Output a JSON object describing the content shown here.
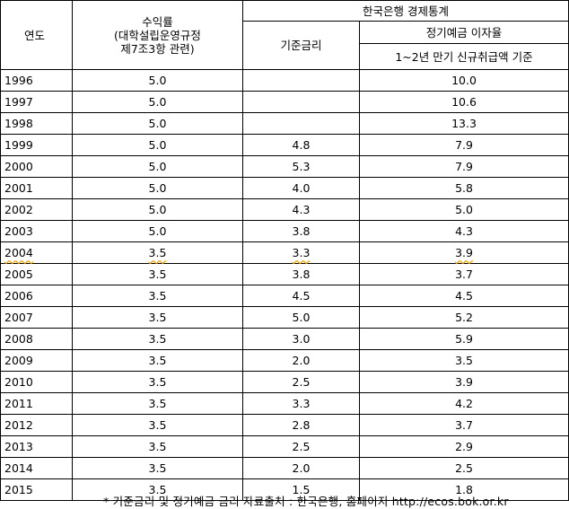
{
  "header": {
    "year": "연도",
    "rate_line1": "수익률",
    "rate_line2": "(대학설립운영규정",
    "rate_line3": "제7조3항 관련)",
    "bok": "한국은행 경제통계",
    "base_rate": "기준금리",
    "deposit": "정기예금 이자율",
    "deposit_sub": "1~2년 만기 신규취급액 기준"
  },
  "rows": [
    {
      "year": "1996",
      "rate": "5.0",
      "base": "",
      "deposit": "10.0"
    },
    {
      "year": "1997",
      "rate": "5.0",
      "base": "",
      "deposit": "10.6"
    },
    {
      "year": "1998",
      "rate": "5.0",
      "base": "",
      "deposit": "13.3"
    },
    {
      "year": "1999",
      "rate": "5.0",
      "base": "4.8",
      "deposit": "7.9"
    },
    {
      "year": "2000",
      "rate": "5.0",
      "base": "5.3",
      "deposit": "7.9"
    },
    {
      "year": "2001",
      "rate": "5.0",
      "base": "4.0",
      "deposit": "5.8"
    },
    {
      "year": "2002",
      "rate": "5.0",
      "base": "4.3",
      "deposit": "5.0"
    },
    {
      "year": "2003",
      "rate": "5.0",
      "base": "3.8",
      "deposit": "4.3"
    },
    {
      "year": "2004",
      "rate": "3.5",
      "base": "3.3",
      "deposit": "3.9",
      "marked": true
    },
    {
      "year": "2005",
      "rate": "3.5",
      "base": "3.8",
      "deposit": "3.7"
    },
    {
      "year": "2006",
      "rate": "3.5",
      "base": "4.5",
      "deposit": "4.5"
    },
    {
      "year": "2007",
      "rate": "3.5",
      "base": "5.0",
      "deposit": "5.2"
    },
    {
      "year": "2008",
      "rate": "3.5",
      "base": "3.0",
      "deposit": "5.9"
    },
    {
      "year": "2009",
      "rate": "3.5",
      "base": "2.0",
      "deposit": "3.5"
    },
    {
      "year": "2010",
      "rate": "3.5",
      "base": "2.5",
      "deposit": "3.9"
    },
    {
      "year": "2011",
      "rate": "3.5",
      "base": "3.3",
      "deposit": "4.2"
    },
    {
      "year": "2012",
      "rate": "3.5",
      "base": "2.8",
      "deposit": "3.7"
    },
    {
      "year": "2013",
      "rate": "3.5",
      "base": "2.5",
      "deposit": "2.9"
    },
    {
      "year": "2014",
      "rate": "3.5",
      "base": "2.0",
      "deposit": "2.5"
    },
    {
      "year": "2015",
      "rate": "3.5",
      "base": "1.5",
      "deposit": "1.8"
    }
  ],
  "footnote": "* 기준금리 및 정기예금 금리 자료출처 : 한국은행, 홈페이지 http://ecos.bok.or.kr"
}
